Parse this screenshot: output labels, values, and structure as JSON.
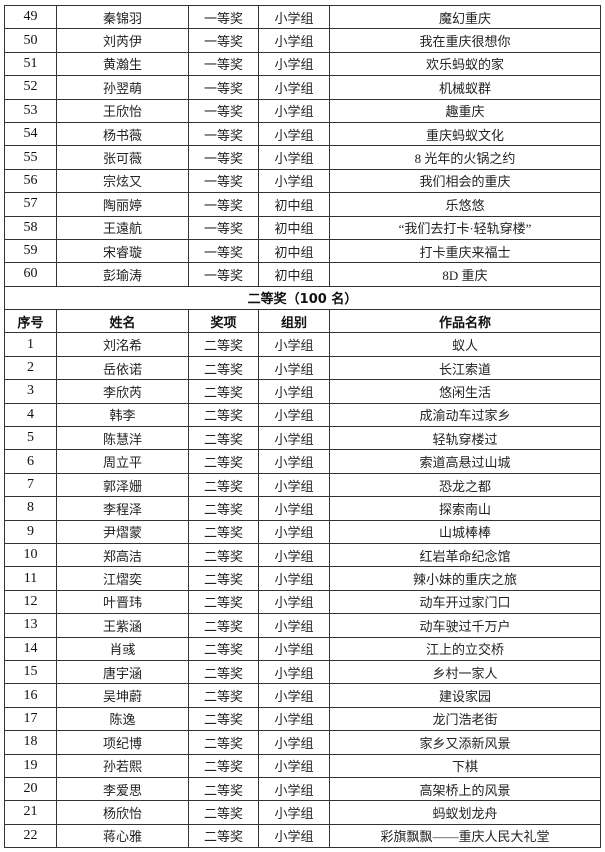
{
  "first_prize_rows": [
    {
      "no": "49",
      "name": "秦锦羽",
      "award": "一等奖",
      "group": "小学组",
      "work": "魔幻重庆"
    },
    {
      "no": "50",
      "name": "刘芮伊",
      "award": "一等奖",
      "group": "小学组",
      "work": "我在重庆很想你"
    },
    {
      "no": "51",
      "name": "黄瀚生",
      "award": "一等奖",
      "group": "小学组",
      "work": "欢乐蚂蚁的家"
    },
    {
      "no": "52",
      "name": "孙翌萌",
      "award": "一等奖",
      "group": "小学组",
      "work": "机械蚁群"
    },
    {
      "no": "53",
      "name": "王欣怡",
      "award": "一等奖",
      "group": "小学组",
      "work": "趣重庆"
    },
    {
      "no": "54",
      "name": "杨书薇",
      "award": "一等奖",
      "group": "小学组",
      "work": "重庆蚂蚁文化"
    },
    {
      "no": "55",
      "name": "张可薇",
      "award": "一等奖",
      "group": "小学组",
      "work": "8 光年的火锅之约"
    },
    {
      "no": "56",
      "name": "宗炫又",
      "award": "一等奖",
      "group": "小学组",
      "work": "我们相会的重庆"
    },
    {
      "no": "57",
      "name": "陶丽婷",
      "award": "一等奖",
      "group": "初中组",
      "work": "乐悠悠"
    },
    {
      "no": "58",
      "name": "王遠航",
      "award": "一等奖",
      "group": "初中组",
      "work": "“我们去打卡·轻轨穿楼”"
    },
    {
      "no": "59",
      "name": "宋睿璇",
      "award": "一等奖",
      "group": "初中组",
      "work": "打卡重庆来福士"
    },
    {
      "no": "60",
      "name": "彭瑜涛",
      "award": "一等奖",
      "group": "初中组",
      "work": "8D 重庆"
    }
  ],
  "second_prize": {
    "title": "二等奖（100 名）",
    "headers": [
      "序号",
      "姓名",
      "奖项",
      "组别",
      "作品名称"
    ],
    "rows": [
      {
        "no": "1",
        "name": "刘洺希",
        "award": "二等奖",
        "group": "小学组",
        "work": "蚁人"
      },
      {
        "no": "2",
        "name": "岳依诺",
        "award": "二等奖",
        "group": "小学组",
        "work": "长江索道"
      },
      {
        "no": "3",
        "name": "李欣芮",
        "award": "二等奖",
        "group": "小学组",
        "work": "悠闲生活"
      },
      {
        "no": "4",
        "name": "韩李",
        "award": "二等奖",
        "group": "小学组",
        "work": "成渝动车过家乡"
      },
      {
        "no": "5",
        "name": "陈慧洋",
        "award": "二等奖",
        "group": "小学组",
        "work": "轻轨穿楼过"
      },
      {
        "no": "6",
        "name": "周立平",
        "award": "二等奖",
        "group": "小学组",
        "work": "索道高悬过山城"
      },
      {
        "no": "7",
        "name": "郭泽姗",
        "award": "二等奖",
        "group": "小学组",
        "work": "恐龙之都"
      },
      {
        "no": "8",
        "name": "李程泽",
        "award": "二等奖",
        "group": "小学组",
        "work": "探索南山"
      },
      {
        "no": "9",
        "name": "尹熠蒙",
        "award": "二等奖",
        "group": "小学组",
        "work": "山城棒棒"
      },
      {
        "no": "10",
        "name": "郑高洁",
        "award": "二等奖",
        "group": "小学组",
        "work": "红岩革命纪念馆"
      },
      {
        "no": "11",
        "name": "江熠奕",
        "award": "二等奖",
        "group": "小学组",
        "work": "辣小妹的重庆之旅"
      },
      {
        "no": "12",
        "name": "叶晋玮",
        "award": "二等奖",
        "group": "小学组",
        "work": "动车开过家门口"
      },
      {
        "no": "13",
        "name": "王紫涵",
        "award": "二等奖",
        "group": "小学组",
        "work": "动车驶过千万户"
      },
      {
        "no": "14",
        "name": "肖彧",
        "award": "二等奖",
        "group": "小学组",
        "work": "江上的立交桥"
      },
      {
        "no": "15",
        "name": "唐宇涵",
        "award": "二等奖",
        "group": "小学组",
        "work": "乡村一家人"
      },
      {
        "no": "16",
        "name": "吴坤蔚",
        "award": "二等奖",
        "group": "小学组",
        "work": "建设家园"
      },
      {
        "no": "17",
        "name": "陈逸",
        "award": "二等奖",
        "group": "小学组",
        "work": "龙门浩老街"
      },
      {
        "no": "18",
        "name": "项纪博",
        "award": "二等奖",
        "group": "小学组",
        "work": "家乡又添新风景"
      },
      {
        "no": "19",
        "name": "孙若熙",
        "award": "二等奖",
        "group": "小学组",
        "work": "下棋"
      },
      {
        "no": "20",
        "name": "李爱思",
        "award": "二等奖",
        "group": "小学组",
        "work": "高架桥上的风景"
      },
      {
        "no": "21",
        "name": "杨欣怡",
        "award": "二等奖",
        "group": "小学组",
        "work": "蚂蚁划龙舟"
      },
      {
        "no": "22",
        "name": "蒋心雅",
        "award": "二等奖",
        "group": "小学组",
        "work": "彩旗飘飘——重庆人民大礼堂"
      }
    ]
  }
}
